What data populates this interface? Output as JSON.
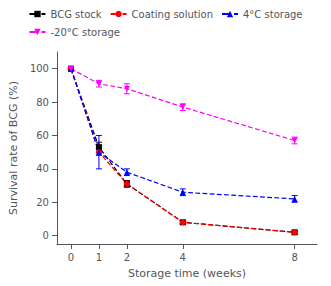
{
  "chart_data": {
    "type": "line",
    "xlabel": "Storage time (weeks)",
    "ylabel": "Survival rate of BCG (%)",
    "x": [
      0,
      1,
      2,
      4,
      8
    ],
    "series": [
      {
        "name": "BCG stock",
        "color": "#000000",
        "marker": "square",
        "line_style": "dashed",
        "values": [
          100,
          53,
          31,
          8,
          2
        ],
        "yerr": [
          0,
          3,
          2,
          1,
          1
        ]
      },
      {
        "name": "Coating solution",
        "color": "#ff0000",
        "marker": "circle",
        "line_style": "dashed",
        "values": [
          100,
          50,
          31,
          8,
          2
        ],
        "yerr": [
          0,
          2,
          1,
          1,
          1
        ]
      },
      {
        "name": "4°C storage",
        "color": "#0000ff",
        "marker": "triangle-up",
        "line_style": "dashed",
        "values": [
          100,
          50,
          38,
          26,
          22
        ],
        "yerr": [
          0,
          10,
          2,
          2,
          2
        ]
      },
      {
        "name": "-20°C storage",
        "color": "#ff00ff",
        "marker": "triangle-down",
        "line_style": "dashed",
        "values": [
          100,
          91,
          88,
          77,
          57
        ],
        "yerr": [
          0,
          2,
          3,
          2,
          2
        ]
      }
    ],
    "xlim": [
      -0.5,
      8.8
    ],
    "xticks": [
      0,
      1,
      2,
      4,
      8
    ],
    "ylim": [
      -5,
      110
    ],
    "yticks": [
      0,
      20,
      40,
      60,
      80,
      100
    ],
    "grid": false,
    "legend": "top"
  }
}
